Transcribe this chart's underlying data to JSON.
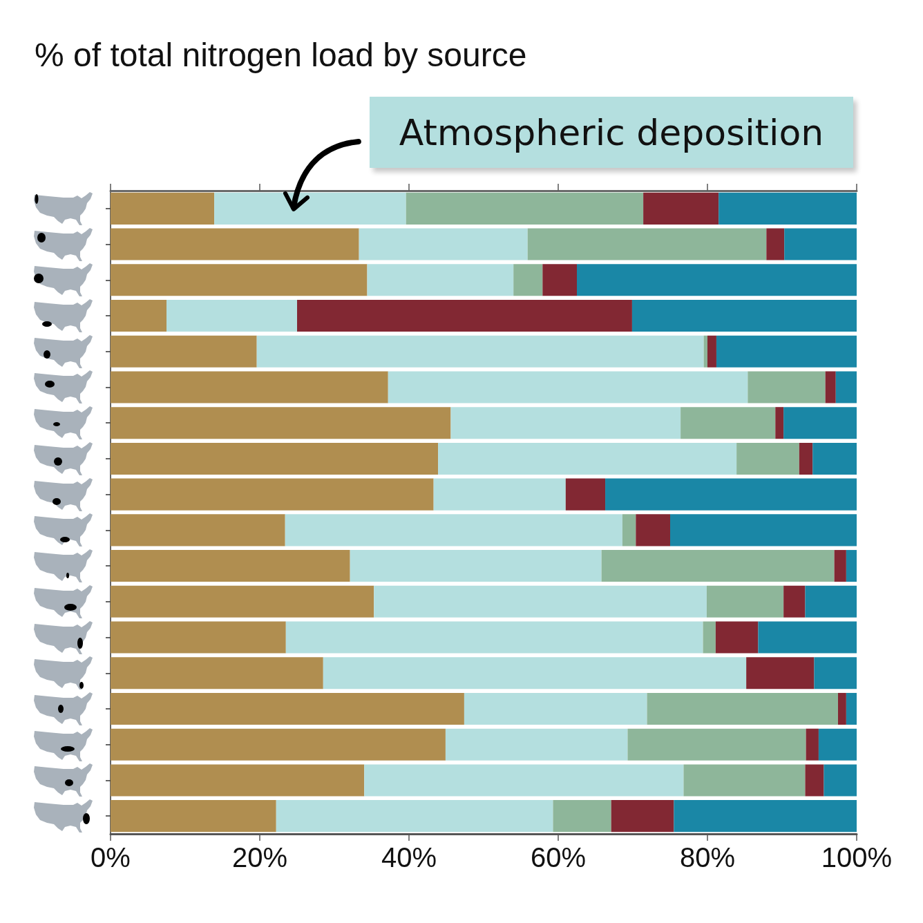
{
  "chart_data": {
    "type": "bar",
    "orientation": "horizontal",
    "stacked": true,
    "title": "% of total nitrogen load by source",
    "categories": [
      null,
      null,
      null,
      null,
      null,
      null,
      null,
      null,
      null,
      null,
      null,
      null,
      null,
      null,
      null,
      null,
      null,
      null
    ],
    "series": [
      {
        "color": "#b08e50",
        "values": [
          13.9,
          33.3,
          34.4,
          7.5,
          19.6,
          37.2,
          45.6,
          43.9,
          43.3,
          23.4,
          32.1,
          35.3,
          23.5,
          28.5,
          47.4,
          44.9,
          34.0,
          22.2
        ]
      },
      {
        "name": "Atmospheric deposition",
        "color": "#b4dfdf",
        "values": [
          25.7,
          22.6,
          19.6,
          17.5,
          59.9,
          48.2,
          30.8,
          40.0,
          17.7,
          45.2,
          33.7,
          44.6,
          55.9,
          56.7,
          24.5,
          24.4,
          42.8,
          37.1
        ]
      },
      {
        "color": "#8eb69a",
        "values": [
          31.8,
          32.0,
          3.9,
          0,
          0.5,
          10.4,
          12.7,
          8.4,
          0,
          1.8,
          31.2,
          10.3,
          1.7,
          0,
          25.6,
          23.9,
          16.3,
          7.8
        ]
      },
      {
        "color": "#822833",
        "values": [
          10.1,
          2.4,
          4.6,
          44.9,
          1.2,
          1.4,
          1.1,
          1.8,
          5.3,
          4.6,
          1.6,
          2.9,
          5.7,
          9.1,
          1.1,
          1.7,
          2.5,
          8.4
        ]
      },
      {
        "color": "#1a87a6",
        "values": [
          18.5,
          9.7,
          37.5,
          30.1,
          18.8,
          2.8,
          9.8,
          5.9,
          33.7,
          25.0,
          1.4,
          6.9,
          13.2,
          5.7,
          1.4,
          5.1,
          4.4,
          24.5
        ]
      }
    ],
    "xlim": [
      0,
      100
    ],
    "xticks": [
      {
        "value": 0,
        "label": "0%"
      },
      {
        "value": 20,
        "label": "20%"
      },
      {
        "value": 40,
        "label": "40%"
      },
      {
        "value": 60,
        "label": "60%"
      },
      {
        "value": 80,
        "label": "80%"
      },
      {
        "value": 100,
        "label": "100%"
      }
    ]
  }
}
